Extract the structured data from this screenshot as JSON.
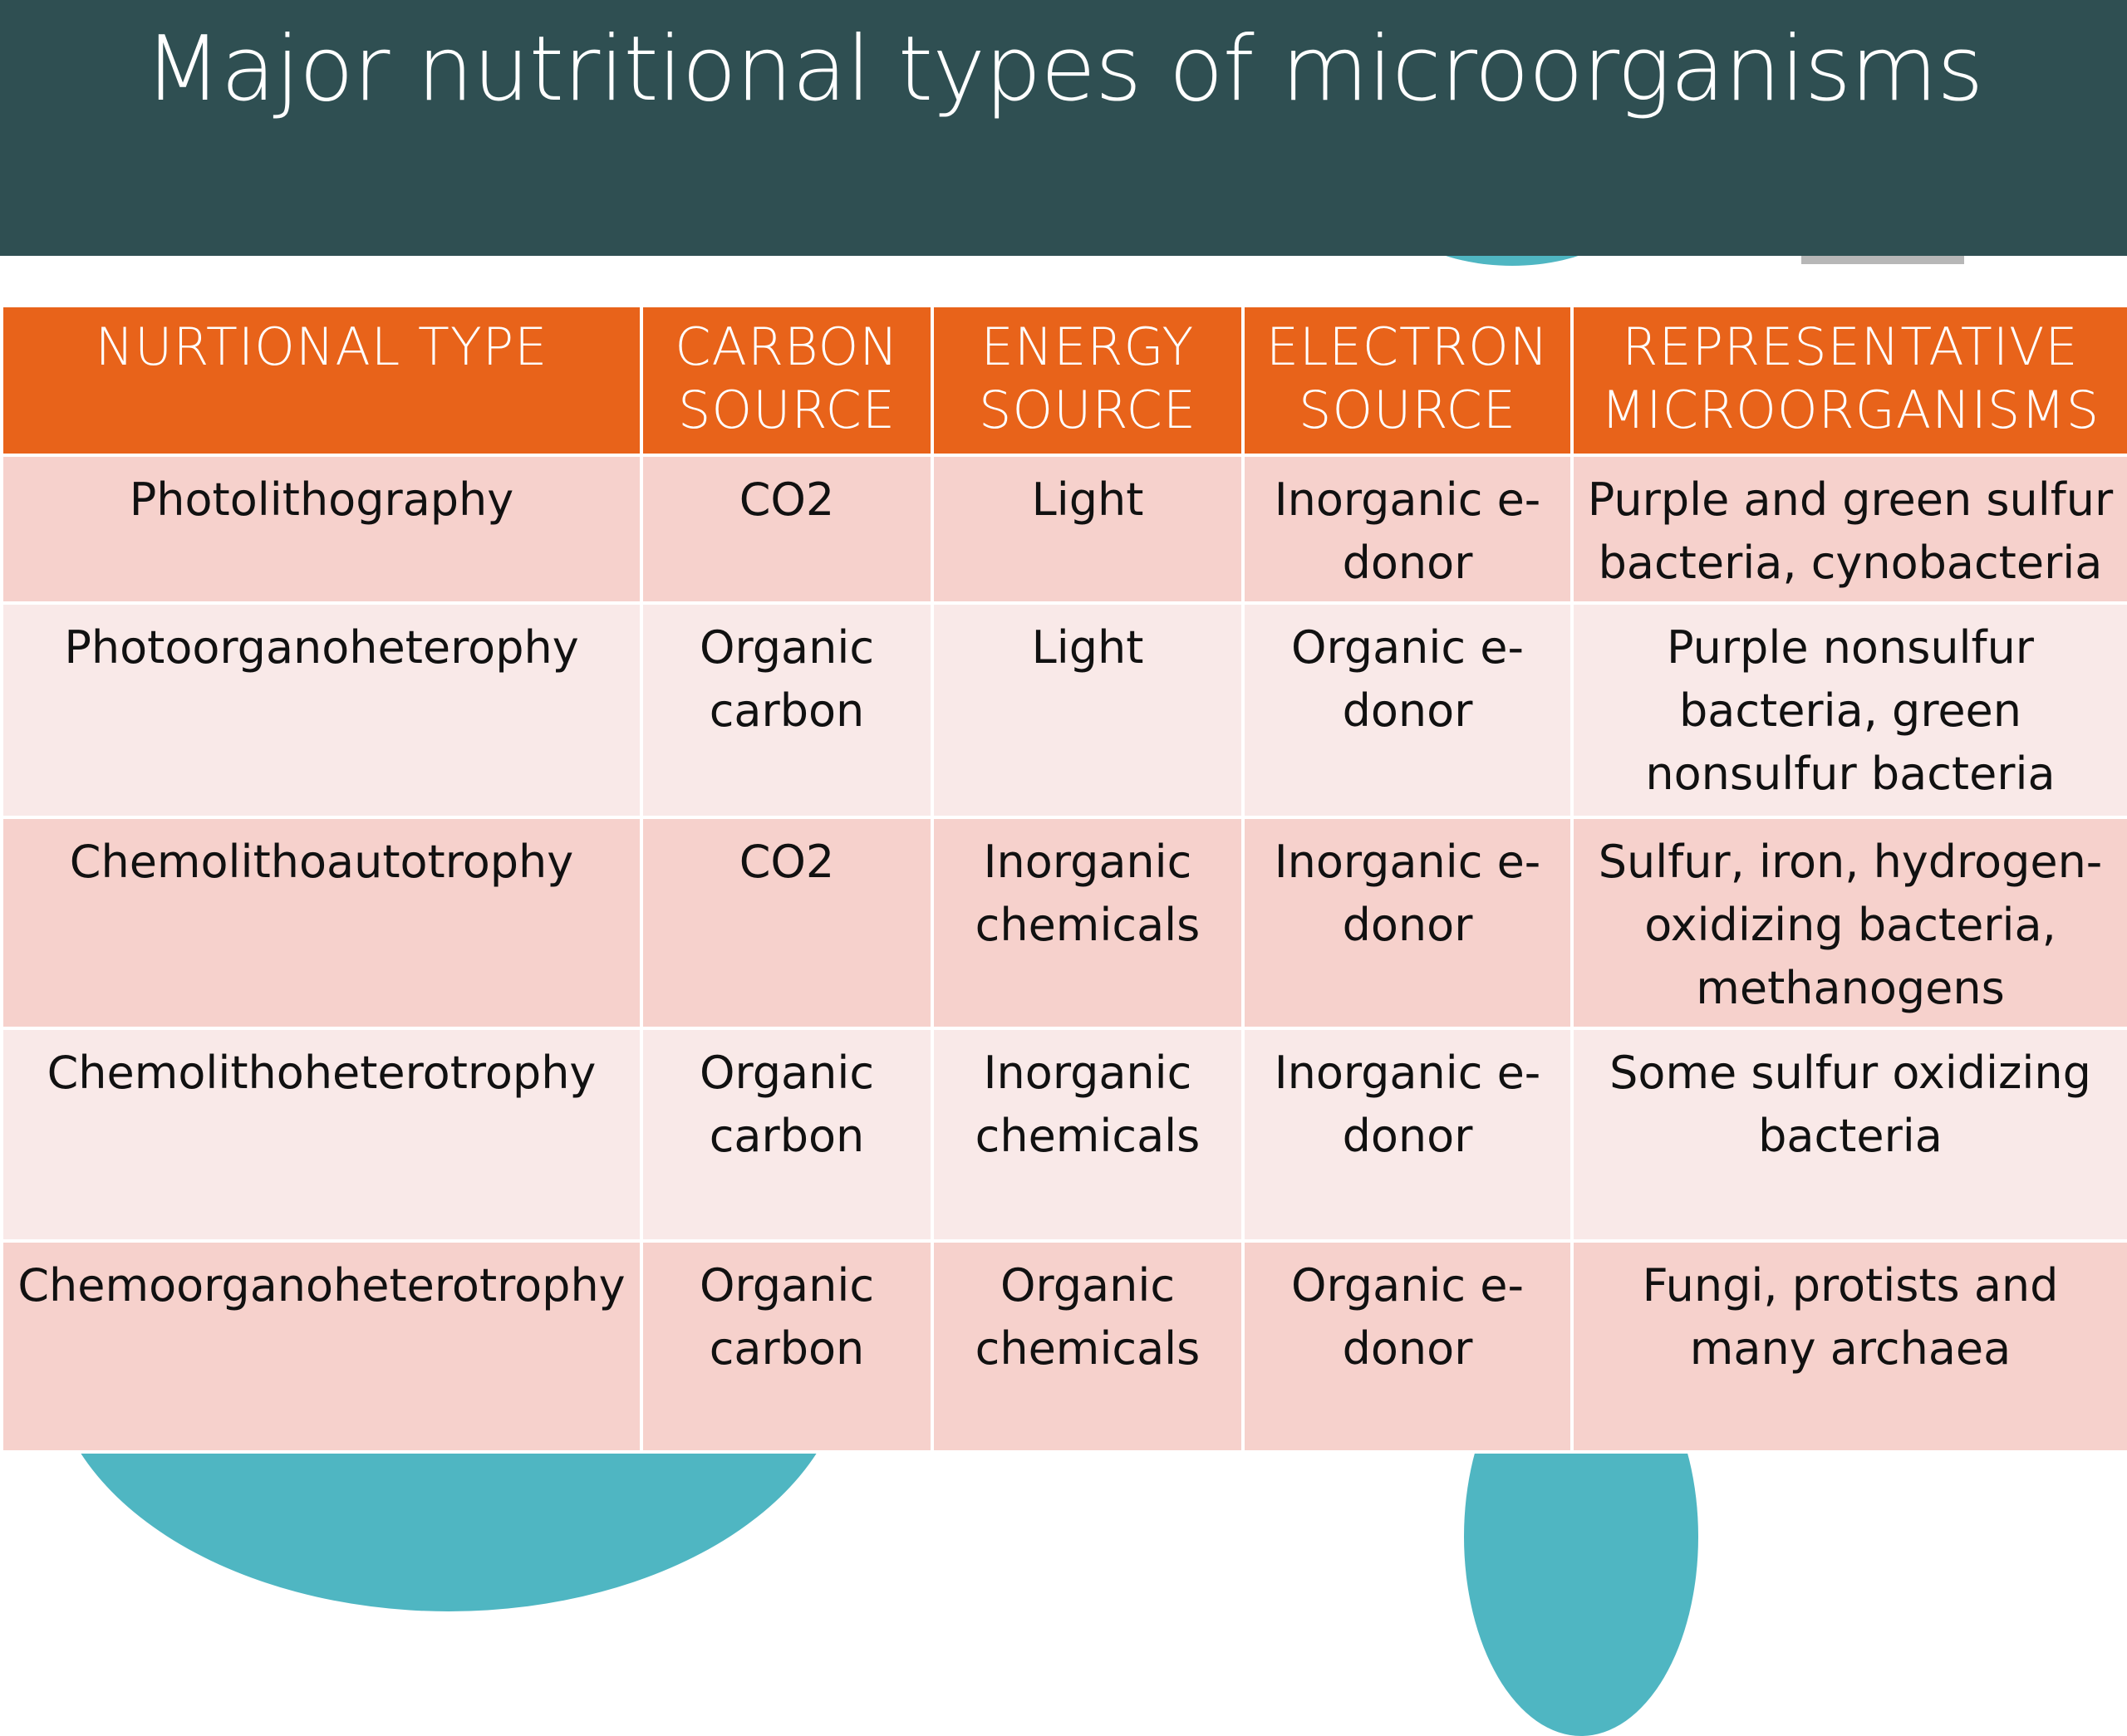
{
  "title": "Major nutritional types of microorganisms",
  "colors": {
    "title_bar": "#2f4f52",
    "header": "#e8631a",
    "row_dark": "#f6d1cc",
    "row_light": "#f9e9e8",
    "accent_circle": "#4fb6c2"
  },
  "table": {
    "headers": {
      "type": "NURTIONAL TYPE",
      "carbon": "CARBON SOURCE",
      "energy": "ENERGY SOURCE",
      "electron": "ELECTRON SOURCE",
      "organisms": "REPRESENTATIVE MICROORGANISMS"
    },
    "rows": [
      {
        "type": "Photolithography",
        "carbon": "CO2",
        "energy": "Light",
        "electron": "Inorganic e-donor",
        "organisms": "Purple and green sulfur bacteria, cynobacteria"
      },
      {
        "type": "Photoorganoheterophy",
        "carbon": "Organic carbon",
        "energy": "Light",
        "electron": "Organic e-donor",
        "organisms": "Purple nonsulfur bacteria, green nonsulfur bacteria"
      },
      {
        "type": "Chemolithoautotrophy",
        "carbon": "CO2",
        "energy": "Inorganic chemicals",
        "electron": "Inorganic e-donor",
        "organisms": "Sulfur, iron, hydrogen-oxidizing bacteria, methanogens"
      },
      {
        "type": "Chemolithoheterotrophy",
        "carbon": "Organic carbon",
        "energy": "Inorganic chemicals",
        "electron": "Inorganic e-donor",
        "organisms": "Some sulfur oxidizing bacteria"
      },
      {
        "type": "Chemoorganoheterotrophy",
        "carbon": "Organic carbon",
        "energy": "Organic chemicals",
        "electron": "Organic e-donor",
        "organisms": "Fungi, protists and many archaea"
      }
    ]
  }
}
